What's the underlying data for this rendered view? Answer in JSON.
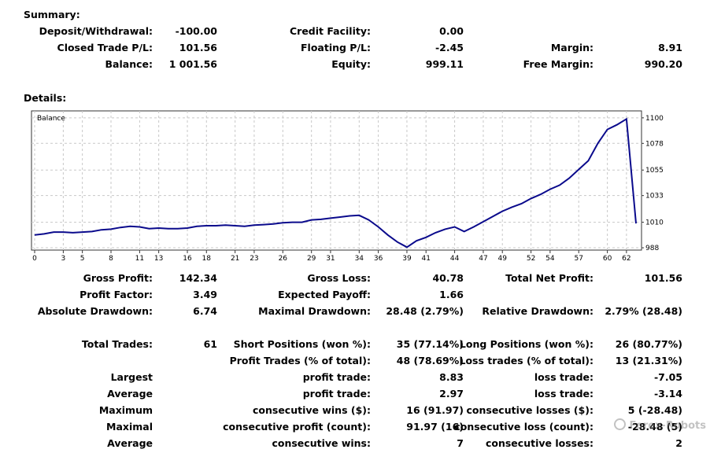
{
  "summary": {
    "title": "Summary:",
    "deposit_withdrawal": {
      "label": "Deposit/Withdrawal:",
      "value": "-100.00"
    },
    "credit_facility": {
      "label": "Credit Facility:",
      "value": "0.00"
    },
    "closed_trade_pl": {
      "label": "Closed Trade P/L:",
      "value": "101.56"
    },
    "floating_pl": {
      "label": "Floating P/L:",
      "value": "-2.45"
    },
    "margin": {
      "label": "Margin:",
      "value": "8.91"
    },
    "balance": {
      "label": "Balance:",
      "value": "1 001.56"
    },
    "equity": {
      "label": "Equity:",
      "value": "999.11"
    },
    "free_margin": {
      "label": "Free Margin:",
      "value": "990.20"
    }
  },
  "details": {
    "title": "Details:",
    "gross_profit": {
      "label": "Gross Profit:",
      "value": "142.34"
    },
    "gross_loss": {
      "label": "Gross Loss:",
      "value": "40.78"
    },
    "total_net_profit": {
      "label": "Total Net Profit:",
      "value": "101.56"
    },
    "profit_factor": {
      "label": "Profit Factor:",
      "value": "3.49"
    },
    "expected_payoff": {
      "label": "Expected Payoff:",
      "value": "1.66"
    },
    "absolute_drawdown": {
      "label": "Absolute Drawdown:",
      "value": "6.74"
    },
    "maximal_drawdown": {
      "label": "Maximal Drawdown:",
      "value": "28.48 (2.79%)"
    },
    "relative_drawdown": {
      "label": "Relative Drawdown:",
      "value": "2.79% (28.48)"
    },
    "total_trades": {
      "label": "Total Trades:",
      "value": "61"
    },
    "short_positions": {
      "label": "Short Positions (won %):",
      "value": "35 (77.14%)"
    },
    "long_positions": {
      "label": "Long Positions (won %):",
      "value": "26 (80.77%)"
    },
    "profit_trades": {
      "label": "Profit Trades (% of total):",
      "value": "48 (78.69%)"
    },
    "loss_trades": {
      "label": "Loss trades (% of total):",
      "value": "13 (21.31%)"
    },
    "largest": {
      "label": "Largest",
      "profit_label": "profit trade:",
      "profit_value": "8.83",
      "loss_label": "loss trade:",
      "loss_value": "-7.05"
    },
    "average": {
      "label": "Average",
      "profit_label": "profit trade:",
      "profit_value": "2.97",
      "loss_label": "loss trade:",
      "loss_value": "-3.14"
    },
    "maximum": {
      "label": "Maximum",
      "profit_label": "consecutive wins ($):",
      "profit_value": "16 (91.97)",
      "loss_label": "consecutive losses ($):",
      "loss_value": "5 (-28.48)"
    },
    "maximal": {
      "label": "Maximal",
      "profit_label": "consecutive profit (count):",
      "profit_value": "91.97 (16)",
      "loss_label": "consecutive loss (count):",
      "loss_value": "-28.48 (5)"
    },
    "average_consec": {
      "label": "Average",
      "profit_label": "consecutive wins:",
      "profit_value": "7",
      "loss_label": "consecutive losses:",
      "loss_value": "2"
    }
  },
  "chart_data": {
    "type": "line",
    "title": "Balance",
    "line_color": "#0a0a8c",
    "grid": true,
    "x_ticks": [
      "0",
      "3",
      "5",
      "8",
      "11",
      "13",
      "16",
      "18",
      "21",
      "23",
      "26",
      "29",
      "31",
      "34",
      "36",
      "39",
      "41",
      "44",
      "47",
      "49",
      "52",
      "54",
      "57",
      "60",
      "62"
    ],
    "y_ticks": [
      "1100",
      "1078",
      "1055",
      "1033",
      "1010",
      "988"
    ],
    "xlim": [
      0,
      63
    ],
    "ylim": [
      986,
      1106
    ],
    "series": [
      {
        "x": [
          0,
          1,
          2,
          3,
          4,
          5,
          6,
          7,
          8,
          9,
          10,
          11,
          12,
          13,
          14,
          15,
          16,
          17,
          18,
          19,
          20,
          21,
          22,
          23,
          24,
          25,
          26,
          27,
          28,
          29,
          30,
          31,
          32,
          33,
          34,
          35,
          36,
          37,
          38,
          39,
          40,
          41,
          42,
          43,
          44,
          45,
          46,
          47,
          48,
          49,
          50,
          51,
          52,
          53,
          54,
          55,
          56,
          57,
          58,
          59,
          60,
          61,
          62,
          63
        ],
        "y": [
          999,
          1000,
          1001.5,
          1001.5,
          1001,
          1001.5,
          1002,
          1003.5,
          1004,
          1005.5,
          1006.5,
          1006,
          1004.5,
          1005,
          1004.5,
          1004.5,
          1005,
          1006.5,
          1007,
          1007,
          1007.5,
          1007,
          1006.5,
          1007.5,
          1008,
          1008.5,
          1009.5,
          1010,
          1010,
          1012,
          1012.5,
          1013.5,
          1014.5,
          1015.5,
          1016,
          1012,
          1006,
          999,
          993,
          988.5,
          994,
          997,
          1001,
          1004,
          1006,
          1002,
          1006,
          1010.5,
          1015,
          1019.5,
          1023,
          1026,
          1030.5,
          1034,
          1038.5,
          1042,
          1048,
          1055.5,
          1063,
          1078,
          1090,
          1094,
          1099,
          1009
        ]
      }
    ]
  },
  "watermark": "Forex-Robots"
}
